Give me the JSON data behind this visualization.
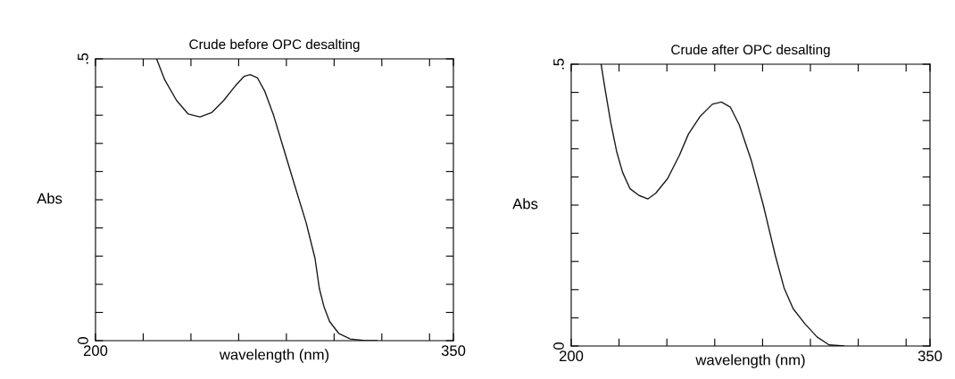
{
  "chart_data": [
    {
      "type": "line",
      "title": "Crude before OPC desalting",
      "xlabel": "wavelength (nm)",
      "ylabel": "Abs",
      "series": [
        {
          "color": "#1a1a1a",
          "x": [
            225.6,
            229,
            234,
            238.9,
            243.8,
            248.8,
            253.7,
            258.6,
            262.3,
            264.8,
            267.9,
            271,
            274.7,
            278.4,
            283.3,
            288.3,
            292,
            293.8,
            295.7,
            298.1,
            301.9,
            306.8,
            313,
            318
          ],
          "values": [
            0.5,
            0.463,
            0.426,
            0.402,
            0.397,
            0.405,
            0.426,
            0.452,
            0.469,
            0.472,
            0.466,
            0.442,
            0.399,
            0.347,
            0.278,
            0.209,
            0.146,
            0.093,
            0.061,
            0.034,
            0.013,
            0.003,
            0,
            0
          ]
        }
      ],
      "xlim": [
        200,
        350
      ],
      "ylim": [
        0,
        0.5
      ],
      "xticks": [
        200,
        {
          "value": 220,
          "label": null
        },
        {
          "value": 240,
          "label": null
        },
        {
          "value": 260,
          "label": null
        },
        {
          "value": 280,
          "label": null
        },
        {
          "value": 300,
          "label": null
        },
        {
          "value": 320,
          "label": null
        },
        {
          "value": 340,
          "label": null
        },
        350
      ],
      "yticks": [
        {
          "value": 0,
          "label": "0"
        },
        {
          "value": 0.05,
          "label": null
        },
        {
          "value": 0.1,
          "label": null
        },
        {
          "value": 0.15,
          "label": null
        },
        {
          "value": 0.2,
          "label": null
        },
        {
          "value": 0.25,
          "label": null
        },
        {
          "value": 0.3,
          "label": null
        },
        {
          "value": 0.35,
          "label": null
        },
        {
          "value": 0.4,
          "label": null
        },
        {
          "value": 0.45,
          "label": null
        },
        {
          "value": 0.5,
          "label": ".5"
        }
      ],
      "grid": false,
      "legend": false,
      "marker": "none",
      "line_style": "solid"
    },
    {
      "type": "line",
      "title": "Crude after OPC desalting",
      "xlabel": "wavelength (nm)",
      "ylabel": "Abs",
      "series": [
        {
          "color": "#1a1a1a",
          "x": [
            212.5,
            214,
            216.5,
            219,
            221.5,
            224.6,
            228.4,
            232.1,
            235.3,
            240.3,
            245.3,
            249,
            254,
            259,
            262.8,
            266.5,
            270.3,
            275.3,
            280.3,
            285.3,
            289,
            292.8,
            297.8,
            302.8,
            307.8,
            314
          ],
          "values": [
            0.5,
            0.46,
            0.397,
            0.345,
            0.308,
            0.279,
            0.267,
            0.261,
            0.271,
            0.297,
            0.339,
            0.376,
            0.408,
            0.429,
            0.433,
            0.424,
            0.392,
            0.329,
            0.25,
            0.161,
            0.103,
            0.066,
            0.039,
            0.016,
            0.002,
            0
          ]
        }
      ],
      "xlim": [
        200,
        350
      ],
      "ylim": [
        0,
        0.5
      ],
      "xticks": [
        200,
        {
          "value": 220,
          "label": null
        },
        {
          "value": 240,
          "label": null
        },
        {
          "value": 260,
          "label": null
        },
        {
          "value": 280,
          "label": null
        },
        {
          "value": 300,
          "label": null
        },
        {
          "value": 320,
          "label": null
        },
        {
          "value": 340,
          "label": null
        },
        350
      ],
      "yticks": [
        {
          "value": 0,
          "label": "0"
        },
        {
          "value": 0.05,
          "label": null
        },
        {
          "value": 0.1,
          "label": null
        },
        {
          "value": 0.15,
          "label": null
        },
        {
          "value": 0.2,
          "label": null
        },
        {
          "value": 0.25,
          "label": null
        },
        {
          "value": 0.3,
          "label": null
        },
        {
          "value": 0.35,
          "label": null
        },
        {
          "value": 0.4,
          "label": null
        },
        {
          "value": 0.45,
          "label": null
        },
        {
          "value": 0.5,
          "label": ".5"
        }
      ],
      "grid": false,
      "legend": false,
      "marker": "none",
      "line_style": "solid"
    }
  ]
}
